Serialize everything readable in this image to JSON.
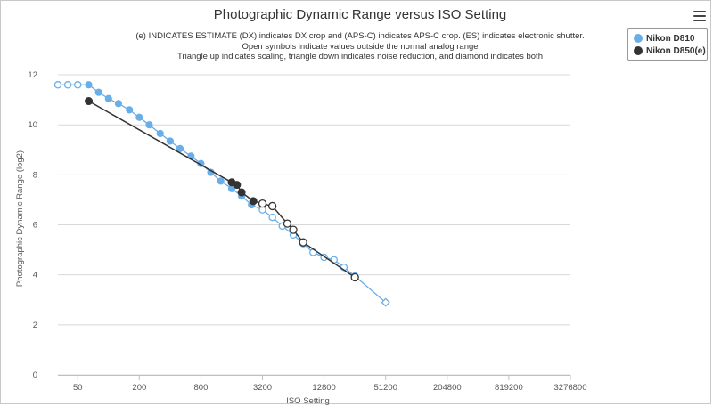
{
  "title": "Photographic Dynamic Range versus ISO Setting",
  "subtitle_lines": [
    "(e) INDICATES ESTIMATE (DX) indicates DX crop and (APS-C) indicates APS-C crop. (ES) indicates electronic shutter.",
    "Open symbols indicate values outside the normal analog range",
    "Triangle up indicates scaling, triangle down indicates noise reduction, and diamond indicates both"
  ],
  "legend": {
    "items": [
      {
        "label": "Nikon D810",
        "color": "#6aaee8"
      },
      {
        "label": "Nikon D850(e)",
        "color": "#333333"
      }
    ]
  },
  "chart_data": {
    "type": "line",
    "title": "Photographic Dynamic Range versus ISO Setting",
    "xlabel": "ISO Setting",
    "ylabel": "Photographic Dynamic Range (log2)",
    "x_scale": "log2",
    "x_ticks": [
      50,
      200,
      800,
      3200,
      12800,
      51200,
      204800,
      819200,
      3276800
    ],
    "xlim": [
      32,
      3276800
    ],
    "y_ticks": [
      0,
      2,
      4,
      6,
      8,
      10,
      12
    ],
    "ylim": [
      0,
      12.5
    ],
    "grid": true,
    "legend_position": "top-right",
    "series": [
      {
        "name": "Nikon D810",
        "color": "#6aaee8",
        "points": [
          {
            "x": 32,
            "y": 11.6,
            "open": true
          },
          {
            "x": 40,
            "y": 11.6,
            "open": true
          },
          {
            "x": 50,
            "y": 11.6,
            "open": true
          },
          {
            "x": 64,
            "y": 11.6,
            "open": false
          },
          {
            "x": 80,
            "y": 11.3,
            "open": false
          },
          {
            "x": 100,
            "y": 11.05,
            "open": false
          },
          {
            "x": 125,
            "y": 10.85,
            "open": false
          },
          {
            "x": 160,
            "y": 10.6,
            "open": false
          },
          {
            "x": 200,
            "y": 10.3,
            "open": false
          },
          {
            "x": 250,
            "y": 10.0,
            "open": false
          },
          {
            "x": 320,
            "y": 9.65,
            "open": false
          },
          {
            "x": 400,
            "y": 9.35,
            "open": false
          },
          {
            "x": 500,
            "y": 9.05,
            "open": false
          },
          {
            "x": 640,
            "y": 8.75,
            "open": false
          },
          {
            "x": 800,
            "y": 8.45,
            "open": false
          },
          {
            "x": 1000,
            "y": 8.1,
            "open": false
          },
          {
            "x": 1250,
            "y": 7.75,
            "open": false
          },
          {
            "x": 1600,
            "y": 7.45,
            "open": false
          },
          {
            "x": 2000,
            "y": 7.15,
            "open": false
          },
          {
            "x": 2500,
            "y": 6.8,
            "open": false
          },
          {
            "x": 3200,
            "y": 6.6,
            "open": true
          },
          {
            "x": 4000,
            "y": 6.3,
            "open": true
          },
          {
            "x": 5000,
            "y": 5.95,
            "open": true
          },
          {
            "x": 6400,
            "y": 5.6,
            "open": true
          },
          {
            "x": 8000,
            "y": 5.25,
            "open": true
          },
          {
            "x": 10000,
            "y": 4.9,
            "open": true
          },
          {
            "x": 12800,
            "y": 4.7,
            "open": true
          },
          {
            "x": 16000,
            "y": 4.6,
            "open": true
          },
          {
            "x": 20000,
            "y": 4.3,
            "open": true
          },
          {
            "x": 25600,
            "y": 3.95,
            "open": true
          },
          {
            "x": 51200,
            "y": 2.9,
            "open": true,
            "marker": "diamond"
          }
        ]
      },
      {
        "name": "Nikon D850(e)",
        "color": "#333333",
        "points": [
          {
            "x": 64,
            "y": 10.95,
            "open": false
          },
          {
            "x": 1600,
            "y": 7.7,
            "open": false
          },
          {
            "x": 1800,
            "y": 7.6,
            "open": false
          },
          {
            "x": 2000,
            "y": 7.3,
            "open": false
          },
          {
            "x": 2600,
            "y": 6.95,
            "open": false
          },
          {
            "x": 3200,
            "y": 6.85,
            "open": true
          },
          {
            "x": 4000,
            "y": 6.75,
            "open": true
          },
          {
            "x": 5600,
            "y": 6.05,
            "open": true
          },
          {
            "x": 6400,
            "y": 5.8,
            "open": true
          },
          {
            "x": 8000,
            "y": 5.3,
            "open": true
          },
          {
            "x": 25600,
            "y": 3.9,
            "open": true
          }
        ]
      }
    ]
  }
}
